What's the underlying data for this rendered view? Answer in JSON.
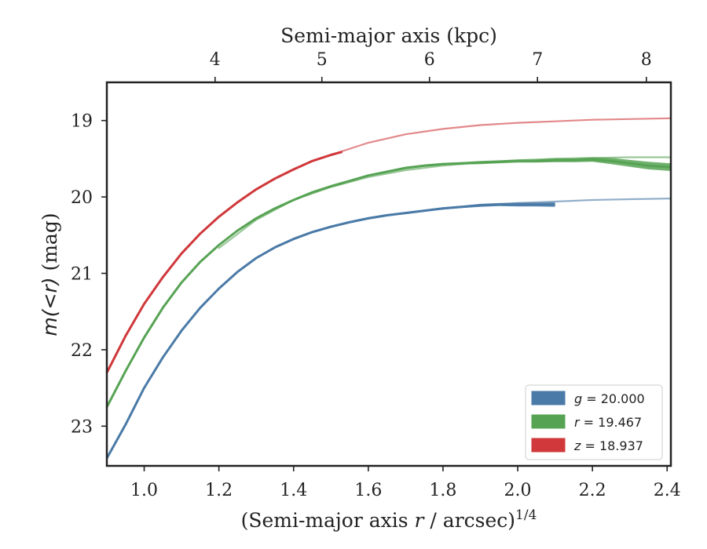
{
  "chart_data": {
    "type": "line",
    "title": "",
    "xlabel": "(Semi-major axis r / arcsec)1/4",
    "xlabel_parts": {
      "prefix": "(Semi-major axis ",
      "var": "r",
      "suffix": " / arcsec)",
      "sup": "1/4"
    },
    "ylabel": "m(<r) (mag)",
    "ylabel_parts": {
      "math": "m(<r)",
      "suffix": " (mag)"
    },
    "top_xlabel": "Semi-major axis (kpc)",
    "xlim": [
      0.9,
      2.41
    ],
    "ylim": [
      23.52,
      18.5
    ],
    "y_inverted": true,
    "x_ticks": [
      "1.0",
      "1.2",
      "1.4",
      "1.6",
      "1.8",
      "2.0",
      "2.2",
      "2.4"
    ],
    "y_ticks": [
      "19",
      "20",
      "21",
      "22",
      "23"
    ],
    "top_ticks": [
      {
        "label": "4",
        "x": 1.1898
      },
      {
        "label": "5",
        "x": 1.4757
      },
      {
        "label": "6",
        "x": 1.7638
      },
      {
        "label": "7",
        "x": 2.0529
      },
      {
        "label": "8",
        "x": 2.3444
      }
    ],
    "grid": false,
    "legend": {
      "position": "lower-right",
      "entries": [
        {
          "band": "g",
          "value": "20.000",
          "color": "#4a7aa7"
        },
        {
          "band": "r",
          "value": "19.467",
          "color": "#57a354"
        },
        {
          "band": "z",
          "value": "18.937",
          "color": "#d0383b"
        }
      ]
    },
    "series": [
      {
        "band": "g",
        "color": "#4a7aa7",
        "data_x": [
          0.9,
          0.95,
          1.0,
          1.05,
          1.1,
          1.15,
          1.2,
          1.25,
          1.3,
          1.35,
          1.4,
          1.45,
          1.5,
          1.55,
          1.6,
          1.65,
          1.7,
          1.75,
          1.8,
          1.85,
          1.9,
          1.95,
          2.0,
          2.05,
          2.1
        ],
        "data_y": [
          23.42,
          22.98,
          22.5,
          22.1,
          21.75,
          21.45,
          21.2,
          20.98,
          20.8,
          20.66,
          20.55,
          20.46,
          20.39,
          20.33,
          20.28,
          20.24,
          20.21,
          20.18,
          20.15,
          20.13,
          20.11,
          20.1,
          20.1,
          20.1,
          20.1
        ],
        "data_width": [
          0.03,
          0.03,
          0.03,
          0.03,
          0.03,
          0.03,
          0.03,
          0.03,
          0.03,
          0.03,
          0.03,
          0.03,
          0.03,
          0.03,
          0.03,
          0.03,
          0.03,
          0.03,
          0.03,
          0.03,
          0.04,
          0.04,
          0.05,
          0.05,
          0.06
        ],
        "model_x": [
          1.7,
          1.8,
          1.9,
          2.0,
          2.1,
          2.2,
          2.3,
          2.41
        ],
        "model_y": [
          20.21,
          20.15,
          20.11,
          20.08,
          20.06,
          20.04,
          20.03,
          20.02
        ]
      },
      {
        "band": "r",
        "color": "#57a354",
        "data_x": [
          0.9,
          0.95,
          1.0,
          1.05,
          1.1,
          1.15,
          1.2,
          1.25,
          1.3,
          1.35,
          1.4,
          1.45,
          1.5,
          1.55,
          1.6,
          1.65,
          1.7,
          1.75,
          1.8,
          1.85,
          1.9,
          1.95,
          2.0,
          2.05,
          2.1,
          2.15,
          2.2,
          2.25,
          2.3,
          2.35,
          2.41
        ],
        "data_y": [
          22.75,
          22.28,
          21.84,
          21.45,
          21.12,
          20.85,
          20.63,
          20.44,
          20.28,
          20.15,
          20.04,
          19.94,
          19.86,
          19.79,
          19.72,
          19.67,
          19.62,
          19.59,
          19.57,
          19.56,
          19.55,
          19.54,
          19.53,
          19.53,
          19.52,
          19.52,
          19.51,
          19.53,
          19.56,
          19.59,
          19.61
        ],
        "data_width": [
          0.03,
          0.03,
          0.03,
          0.03,
          0.03,
          0.03,
          0.03,
          0.03,
          0.03,
          0.03,
          0.03,
          0.03,
          0.03,
          0.03,
          0.03,
          0.03,
          0.03,
          0.03,
          0.03,
          0.03,
          0.04,
          0.04,
          0.04,
          0.04,
          0.05,
          0.05,
          0.06,
          0.08,
          0.09,
          0.1,
          0.1
        ],
        "model_x": [
          1.2,
          1.3,
          1.4,
          1.5,
          1.6,
          1.7,
          1.8,
          1.9,
          2.0,
          2.1,
          2.2,
          2.3,
          2.41
        ],
        "model_y": [
          20.67,
          20.3,
          20.04,
          19.87,
          19.74,
          19.65,
          19.59,
          19.55,
          19.52,
          19.5,
          19.49,
          19.48,
          19.48
        ]
      },
      {
        "band": "z",
        "color": "#d0383b",
        "data_x": [
          0.9,
          0.95,
          1.0,
          1.05,
          1.1,
          1.15,
          1.2,
          1.25,
          1.3,
          1.35,
          1.4,
          1.45,
          1.5,
          1.53
        ],
        "data_y": [
          22.3,
          21.82,
          21.4,
          21.05,
          20.74,
          20.48,
          20.26,
          20.07,
          19.9,
          19.76,
          19.64,
          19.53,
          19.45,
          19.41
        ],
        "data_width": [
          0.03,
          0.03,
          0.03,
          0.03,
          0.03,
          0.03,
          0.03,
          0.03,
          0.03,
          0.03,
          0.03,
          0.03,
          0.03,
          0.03
        ],
        "model_x": [
          1.5,
          1.6,
          1.7,
          1.8,
          1.9,
          2.0,
          2.1,
          2.2,
          2.3,
          2.41
        ],
        "model_y": [
          19.45,
          19.29,
          19.18,
          19.11,
          19.06,
          19.03,
          19.01,
          18.99,
          18.98,
          18.97
        ]
      }
    ]
  }
}
